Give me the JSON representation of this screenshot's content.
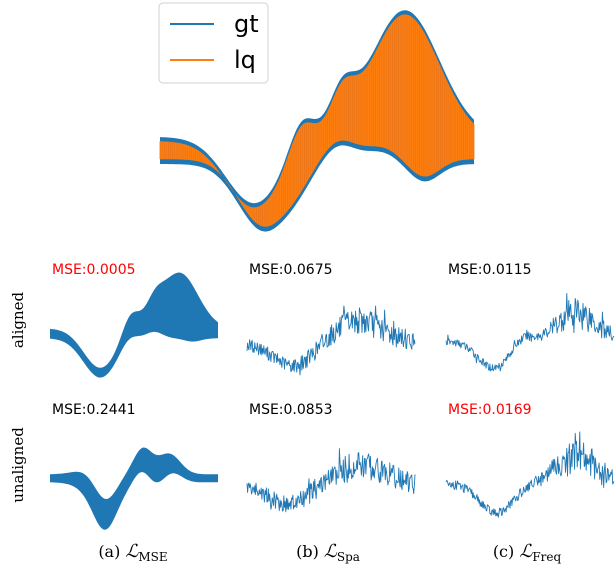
{
  "colors": {
    "gt": "#1f77b4",
    "lq": "#ff7f0e",
    "best": "#ff0000",
    "normal": "#000000"
  },
  "legend": {
    "location": "upper-left",
    "entries": [
      {
        "label": "gt",
        "color": "#1f77b4"
      },
      {
        "label": "lq",
        "color": "#ff7f0e"
      }
    ]
  },
  "rows": [
    "aligned",
    "unaligned"
  ],
  "columns": [
    {
      "caption_prefix": "(a) ",
      "symbol": "ℒ",
      "subscript": "MSE"
    },
    {
      "caption_prefix": "(b) ",
      "symbol": "ℒ",
      "subscript": "Spa"
    },
    {
      "caption_prefix": "(c) ",
      "symbol": "ℒ",
      "subscript": "Freq"
    }
  ],
  "chart_data": [
    {
      "type": "area",
      "panel": "overview",
      "series": [
        {
          "name": "gt",
          "color": "#1f77b4",
          "band": "upper-lower envelope"
        },
        {
          "name": "lq",
          "color": "#ff7f0e",
          "band": "upper-lower envelope"
        }
      ],
      "axes": "off",
      "grid": false,
      "legend": "upper-left"
    },
    {
      "type": "line",
      "panel": "aligned-mse",
      "annotation": "MSE:0.0005",
      "mse": 0.0005,
      "best": true,
      "axes": "off"
    },
    {
      "type": "line",
      "panel": "aligned-spa",
      "annotation": "MSE:0.0675",
      "mse": 0.0675,
      "best": false,
      "axes": "off"
    },
    {
      "type": "line",
      "panel": "aligned-freq",
      "annotation": "MSE:0.0115",
      "mse": 0.0115,
      "best": false,
      "axes": "off"
    },
    {
      "type": "line",
      "panel": "unaligned-mse",
      "annotation": "MSE:0.2441",
      "mse": 0.2441,
      "best": false,
      "axes": "off"
    },
    {
      "type": "line",
      "panel": "unaligned-spa",
      "annotation": "MSE:0.0853",
      "mse": 0.0853,
      "best": false,
      "axes": "off"
    },
    {
      "type": "line",
      "panel": "unaligned-freq",
      "annotation": "MSE:0.0169",
      "mse": 0.0169,
      "best": true,
      "axes": "off"
    }
  ]
}
